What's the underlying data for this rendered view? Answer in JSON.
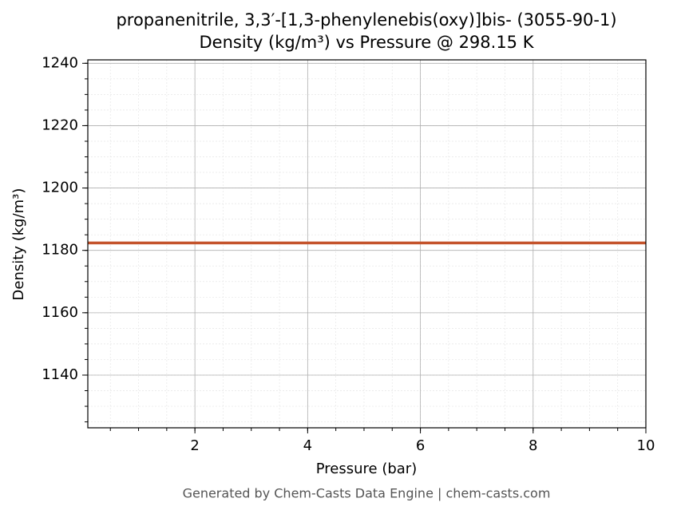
{
  "chart_data": {
    "type": "line",
    "title": "propanenitrile, 3,3′-[1,3-phenylenebis(oxy)]bis- (3055-90-1)",
    "subtitle": "Density (kg/m³) vs Pressure @ 298.15 K",
    "x_label": "Pressure (bar)",
    "y_label": "Density (kg/m³)",
    "footer": "Generated by Chem-Casts Data Engine | chem-casts.com",
    "x": [
      0.1,
      10
    ],
    "series": [
      {
        "name": "Density",
        "color": "#c4532b",
        "values": [
          1182.4,
          1182.4
        ]
      }
    ],
    "xlim": [
      0.1,
      10
    ],
    "xticks": [
      2,
      4,
      6,
      8,
      10
    ],
    "ylim": [
      1123.1,
      1241.1
    ],
    "yticks": [
      1140,
      1160,
      1180,
      1200,
      1220,
      1240
    ],
    "grid": true,
    "legend": false
  }
}
